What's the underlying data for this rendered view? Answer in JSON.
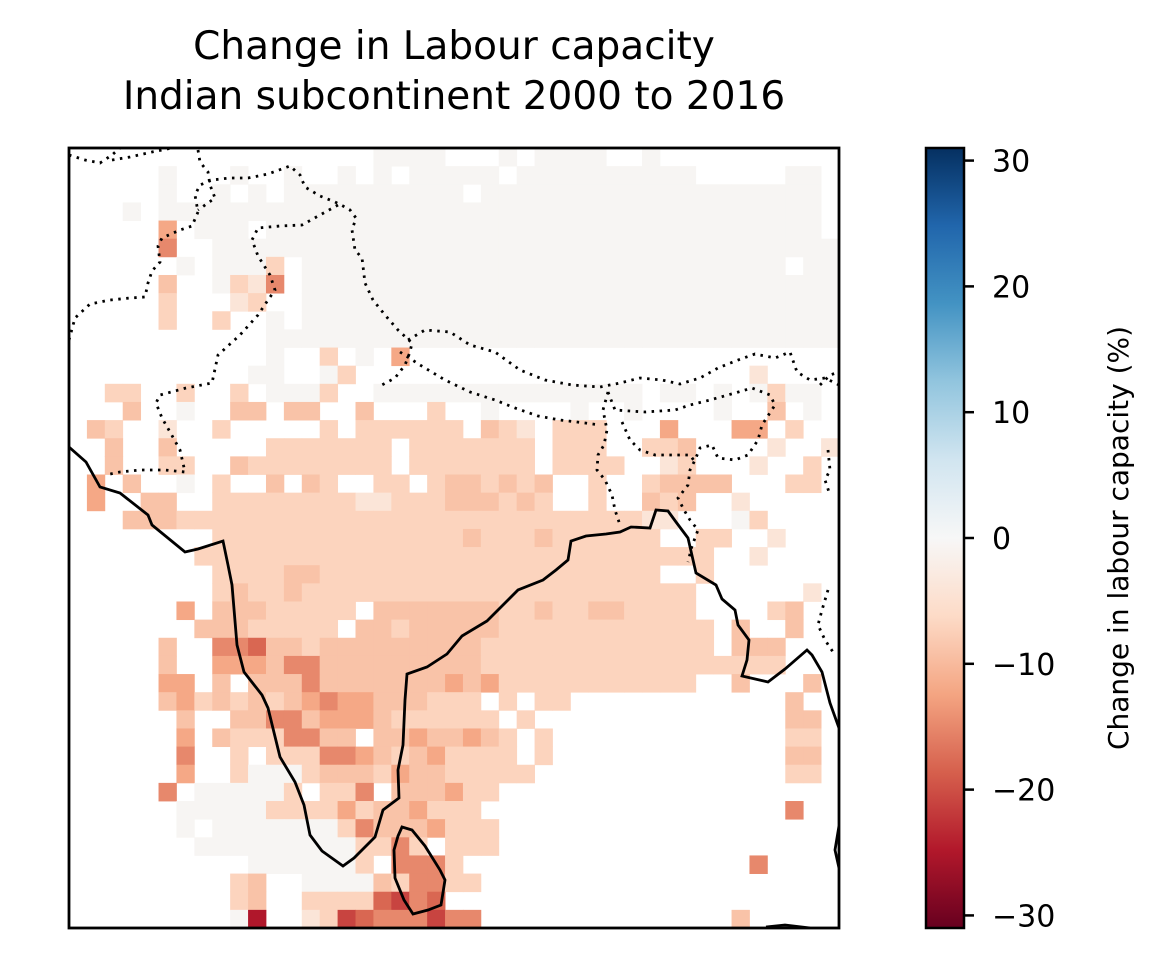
{
  "title_line1": "Change in Labour capacity",
  "title_line2": "Indian subcontinent 2000 to 2016",
  "colorbar": {
    "label": "Change in labour capacity (%)",
    "range": [
      -31,
      31
    ],
    "ticks": [
      30,
      20,
      10,
      0,
      -10,
      -20,
      -30
    ],
    "tick_labels": [
      "30",
      "20",
      "10",
      "0",
      "−10",
      "−20",
      "−30"
    ],
    "colormap": "RdBu",
    "colors": [
      "#67001f",
      "#b2182b",
      "#d6604d",
      "#f4a582",
      "#fddbc7",
      "#f7f7f7",
      "#d1e5f0",
      "#92c5de",
      "#4393c3",
      "#2166ac",
      "#053061"
    ]
  },
  "map": {
    "region": "Indian subcontinent",
    "coastline_style": "solid",
    "border_style": "dotted"
  },
  "chart_data": {
    "type": "heatmap",
    "title": "Change in Labour capacity\nIndian subcontinent 2000 to 2016",
    "colorbar_label": "Change in labour capacity (%)",
    "value_range": [
      -31,
      31
    ],
    "grid": {
      "cols": 43,
      "rows": 43,
      "codes": {
        " ": "no change / no data (white)",
        "n": -0.5,
        "a": -4,
        "b": -7,
        "c": -9,
        "d": -12,
        "e": -15,
        "f": -18,
        "g": -21,
        "h": -25,
        "k": -30
      },
      "matrix": [
        "                 nnnn   n nnnn  n         ",
        "     n   n  n  n n nnnnn nnnnnnnnnn     nn",
        "     n  n n nnnnnnnnnn nnnnnnnnnnnnnnnnnnn",
        "   n nnnnnnnnnnnnnnnnnnnnnnnnnnnnnnnnnnnnn",
        "     d nnn nnnnnnnnnnnnnnnnnnnnnnnnnnnnnnn",
        "     e  nnnnnnnnnnnnnnnnnnnnnnnnnnnnnnnnnnn",
        "      n nnnb nnnnnnnnnnnnnnnnnnnnnnnnnnn nn",
        "     c  nbae nnnnnnnnnnnnnnnnnnnnnnnnnnnnnn",
        "     b   ab  nnnnnnnnnnnnnnnnnnnnnnnnnnnnnn",
        "     b  b  n nnnnnnnnnnnnnnnnnnnnnnnnnnnnnn",
        "           nnnnnnnnnnnnnnnnnnnnnnnnnnnnnnnn",
        "           n  b n d                       ",
        "          nn  nb                      a   ",
        "  bb  b  b nnnb  nnnnnnnnnnnnnnn nn n nbnn ",
        "   c  n  cc cc  c   b  n    n  n    n  c n",
        " cb  a  b     b bbbbbb cba bbb   d   dd b  ",
        "  c  c     bbbbbbb bbbbbbb bbb  bbc    a  a",
        "  c  bb  cbbbbbbbb bbbbbbb bbbb  ab   a  b ",
        " d c  n b  c cb  bb bccbcbc  b  bcccc   bb",
        " d  cc  bbbbbbbbaabbbcccbcb  b  cbc  a    ",
        "   cccbbbbbbbbbbbbbbbbbbbbbbbbbbaa   nb   ",
        "        bbbbbbbbbbbbbbcbbbcbbbbbb  bb  a  ",
        "       bbbbbbbbbbbbbbbbbbbbbbbbbbbbb  a   ",
        "        bbbbccbbbbbbbbbbbbbbbbbbb  b      ",
        "        bcbbcbbbbbbbbbbbbbbbbbbbbbb      a",
        "      d cccbbbbb cccccccbbcbbccbbbb    bc ",
        "       cccbbbbb ccbcccccbbbbbbbbbbbb c  c ",
        "     c  eefccbcccccccccbbbbbbbbbbbbb ccc  ",
        "     c  dddceecccccccccbbbbbbbbbbbbbbbbb  ",
        "     dd c cccecccccccdcdbbbbbbbbbbb  c   c",
        "     cdbcbcbcdeddcccbbb b bb            c ",
        "      c  cceecdddcbbbbbb b              cc",
        "      d cbbbeecc ccdccdcb b             bb",
        "      e  b bbbeedcbcdbbbb b             cc",
        "      d  bnnnbcccbdccbbbbb              bb",
        "     e nnnnnb bbe cccdbb                  ",
        "      nnnnnbbbbdbccdbbb                 e ",
        "      n nnnnnnnbecccdbbb                  ",
        "       nnnnnnnnnbbeb bbb                  ",
        "          nnnnnnb eeeb                e   ",
        "         bc  nnnncbeebb                   ",
        "         bc  bbbbfgef                     ",
        "         nh  abgfeeegee              c    "
      ]
    }
  }
}
